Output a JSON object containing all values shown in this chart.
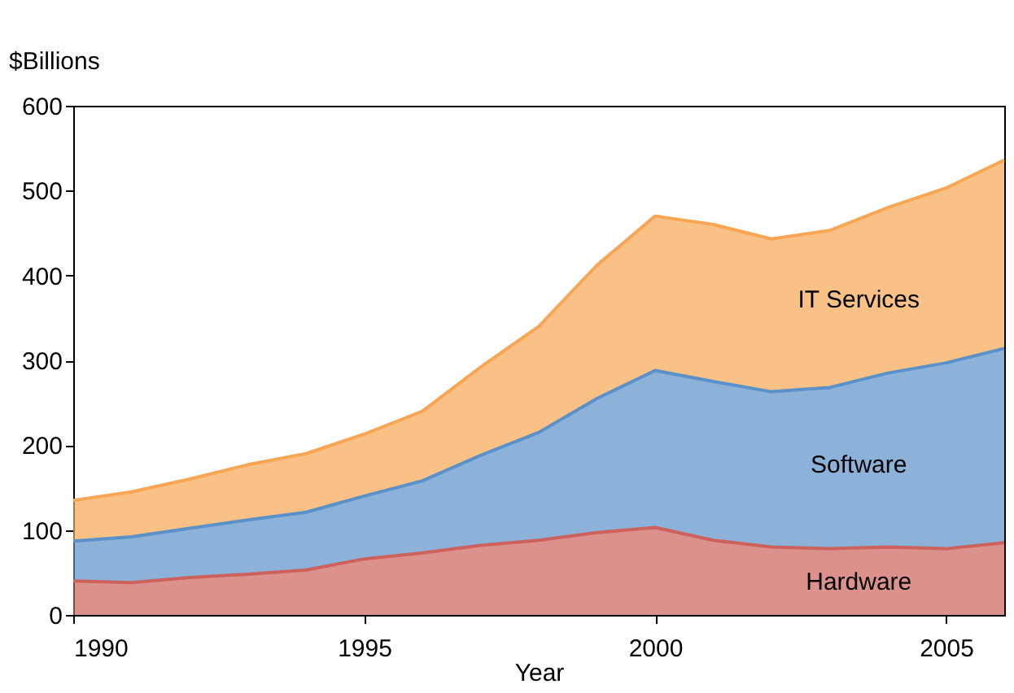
{
  "chart_data": {
    "type": "area",
    "stacked": true,
    "xlabel": "Year",
    "ylabel": "$Billions",
    "x": [
      1990,
      1991,
      1992,
      1993,
      1994,
      1995,
      1996,
      1997,
      1998,
      1999,
      2000,
      2001,
      2002,
      2003,
      2004,
      2005,
      2006
    ],
    "series": [
      {
        "name": "Hardware",
        "color": "#cd625c",
        "values": [
          40,
          38,
          44,
          48,
          53,
          66,
          73,
          82,
          88,
          97,
          103,
          88,
          80,
          78,
          80,
          78,
          85
        ]
      },
      {
        "name": "Software",
        "color": "#5b91c9",
        "values": [
          47,
          54,
          58,
          64,
          68,
          74,
          85,
          106,
          127,
          158,
          185,
          187,
          183,
          190,
          205,
          219,
          229
        ]
      },
      {
        "name": "IT Services",
        "color": "#f8a654",
        "values": [
          48,
          53,
          58,
          65,
          69,
          73,
          82,
          104,
          125,
          157,
          182,
          185,
          180,
          185,
          195,
          206,
          222
        ]
      }
    ],
    "xlim": [
      1990,
      2006
    ],
    "xticks": [
      1990,
      1995,
      2000,
      2005
    ],
    "ylim": [
      0,
      600
    ],
    "yticks": [
      0,
      100,
      200,
      300,
      400,
      500,
      600
    ],
    "grid": false,
    "legend": false
  }
}
